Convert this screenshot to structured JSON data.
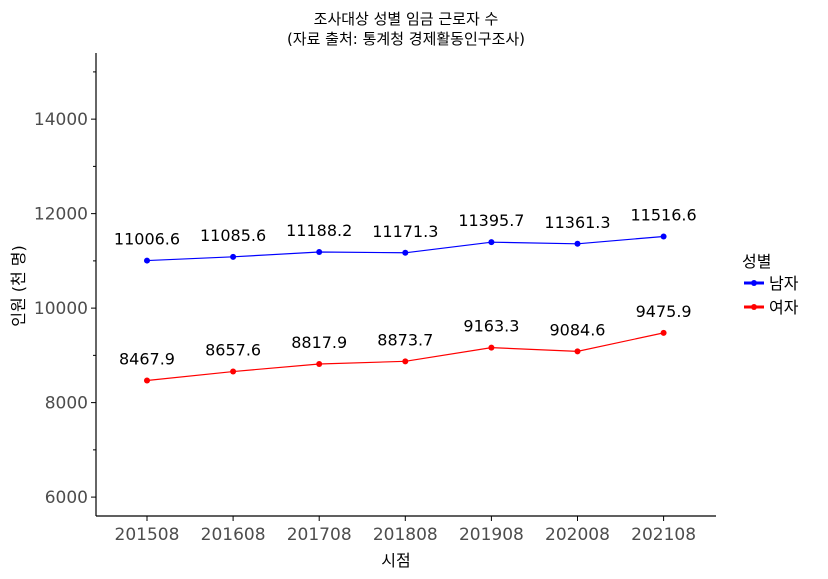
{
  "chart_data": {
    "type": "line",
    "title": "조사대상 성별 임금 근로자 수",
    "subtitle": "(자료 출처: 통계청 경제활동인구조사)",
    "xlabel": "시점",
    "ylabel": "인원 (천 명)",
    "categories": [
      "201508",
      "201608",
      "201708",
      "201808",
      "201908",
      "202008",
      "202108"
    ],
    "ylim": [
      5600,
      15400
    ],
    "yticks": [
      6000,
      8000,
      10000,
      12000,
      14000
    ],
    "grid": false,
    "legend": {
      "title": "성별",
      "position": "right"
    },
    "series": [
      {
        "name": "남자",
        "color": "#0000ff",
        "values": [
          11006.6,
          11085.6,
          11188.2,
          11171.3,
          11395.7,
          11361.3,
          11516.6
        ],
        "labels": [
          "11006.6",
          "11085.6",
          "11188.2",
          "11171.3",
          "11395.7",
          "11361.3",
          "11516.6"
        ]
      },
      {
        "name": "여자",
        "color": "#ff0000",
        "values": [
          8467.9,
          8657.6,
          8817.9,
          8873.7,
          9163.3,
          9084.6,
          9475.9
        ],
        "labels": [
          "8467.9",
          "8657.6",
          "8817.9",
          "8873.7",
          "9163.3",
          "9084.6",
          "9475.9"
        ]
      }
    ]
  }
}
